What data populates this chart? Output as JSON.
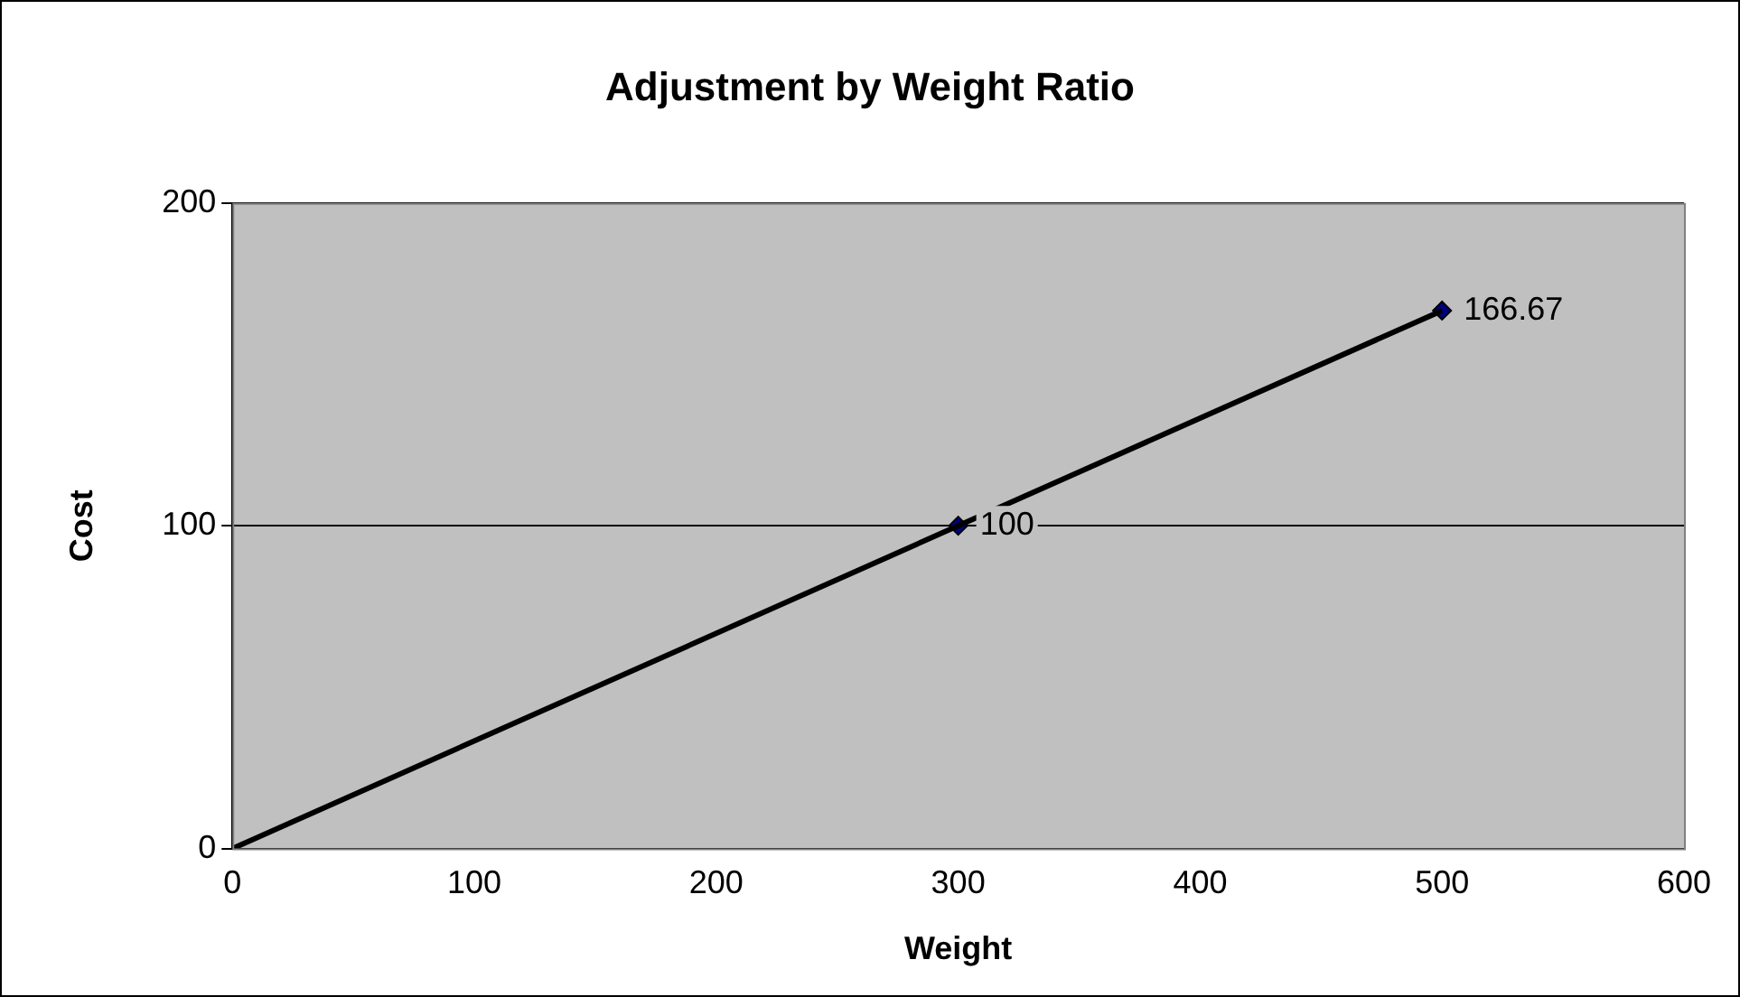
{
  "chart_data": {
    "type": "scatter",
    "title": "Adjustment by Weight Ratio",
    "xlabel": "Weight",
    "ylabel": "Cost",
    "series": [
      {
        "type": "line",
        "x": [
          0,
          500
        ],
        "values": [
          0,
          166.67
        ],
        "color": "#000000",
        "marker": "none"
      },
      {
        "x": [
          300,
          500
        ],
        "values": [
          100,
          166.67
        ],
        "color": "#000080",
        "marker": "diamond",
        "value_labels": [
          "100",
          "166.67"
        ]
      }
    ],
    "xlim": [
      0,
      600
    ],
    "xticks": [
      0,
      100,
      200,
      300,
      400,
      500,
      600
    ],
    "ylim": [
      0,
      200
    ],
    "yticks": [
      0,
      100,
      200
    ],
    "grid": "y",
    "legend": false
  }
}
